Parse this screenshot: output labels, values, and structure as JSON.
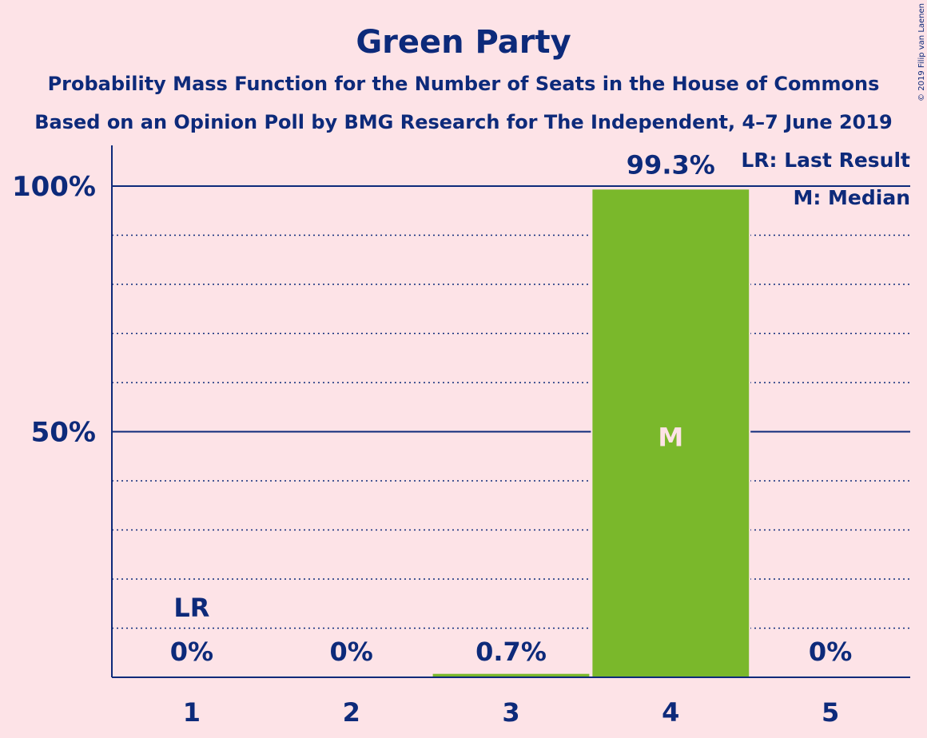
{
  "chart_data": {
    "type": "bar",
    "title": "Green Party",
    "subtitle_line1": "Probability Mass Function for the Number of Seats in the House of Commons",
    "subtitle_line2": "Based on an Opinion Poll by BMG Research for The Independent, 4–7 June 2019",
    "categories": [
      "1",
      "2",
      "3",
      "4",
      "5"
    ],
    "values": [
      0,
      0,
      0.7,
      99.3,
      0
    ],
    "value_labels": [
      "0%",
      "0%",
      "0.7%",
      "99.3%",
      "0%"
    ],
    "ylim": [
      0,
      100
    ],
    "y_ticks": [
      {
        "value": 50,
        "label": "50%"
      },
      {
        "value": 100,
        "label": "100%"
      }
    ],
    "minor_gridlines": [
      10,
      20,
      30,
      40,
      60,
      70,
      80,
      90
    ],
    "last_result_index": 0,
    "last_result_marker": "LR",
    "median_index": 3,
    "median_marker": "M",
    "legend": [
      "LR: Last Result",
      "M: Median"
    ],
    "legend_position": "top-right",
    "bar_color": "#7ab82b",
    "axis_color": "#0d2a7a",
    "background_color": "#fde3e7"
  },
  "copyright": "© 2019 Filip van Laenen"
}
